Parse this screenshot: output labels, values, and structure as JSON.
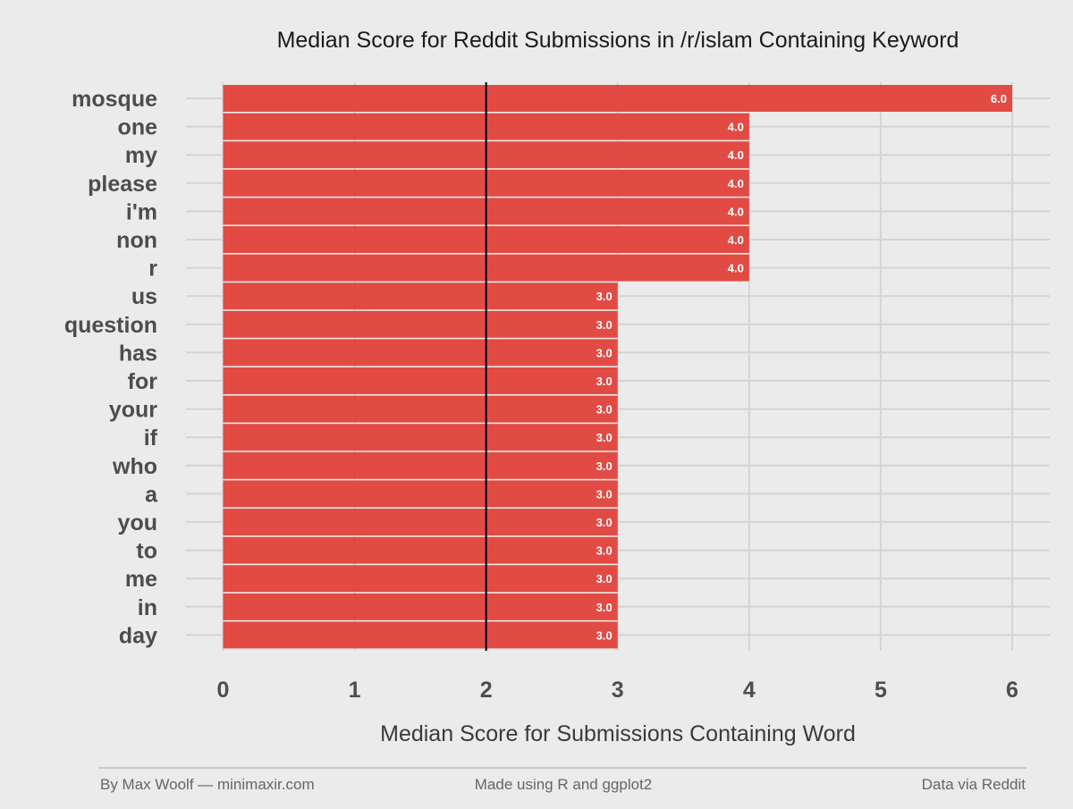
{
  "chart_data": {
    "type": "bar",
    "orientation": "horizontal",
    "title": "Median Score for Reddit Submissions in /r/islam Containing Keyword",
    "xlabel": "Median Score for Submissions Containing Word",
    "ylabel": "",
    "categories": [
      "mosque",
      "one",
      "my",
      "please",
      "i'm",
      "non",
      "r",
      "us",
      "question",
      "has",
      "for",
      "your",
      "if",
      "who",
      "a",
      "you",
      "to",
      "me",
      "in",
      "day"
    ],
    "values": [
      6.0,
      4.0,
      4.0,
      4.0,
      4.0,
      4.0,
      4.0,
      3.0,
      3.0,
      3.0,
      3.0,
      3.0,
      3.0,
      3.0,
      3.0,
      3.0,
      3.0,
      3.0,
      3.0,
      3.0
    ],
    "data_labels": [
      "6.0",
      "4.0",
      "4.0",
      "4.0",
      "4.0",
      "4.0",
      "4.0",
      "3.0",
      "3.0",
      "3.0",
      "3.0",
      "3.0",
      "3.0",
      "3.0",
      "3.0",
      "3.0",
      "3.0",
      "3.0",
      "3.0",
      "3.0"
    ],
    "xlim": [
      0,
      6
    ],
    "xticks": [
      0,
      1,
      2,
      3,
      4,
      5,
      6
    ],
    "xtick_labels": [
      "0",
      "1",
      "2",
      "3",
      "4",
      "5",
      "6"
    ],
    "reference_line": 2,
    "grid": true,
    "bar_color": "#e0423b",
    "grid_color": "#d4d4d4",
    "background_color": "#ebebeb",
    "reference_line_color": "#000000"
  },
  "footer": {
    "left": "By Max Woolf — minimaxir.com",
    "center": "Made using R and ggplot2",
    "right": "Data via Reddit"
  }
}
